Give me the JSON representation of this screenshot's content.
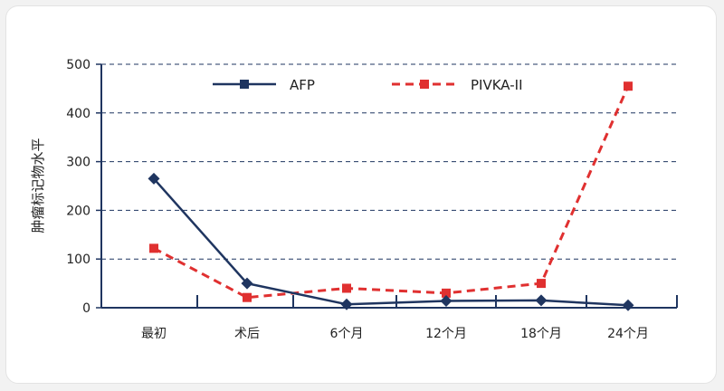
{
  "chart_data": {
    "type": "line",
    "categories": [
      "最初",
      "术后",
      "6个月",
      "12个月",
      "18个月",
      "24个月"
    ],
    "ylabel": "肿瘤标记物水平",
    "xlabel": "",
    "ylim": [
      0,
      500
    ],
    "yticks": [
      0,
      100,
      200,
      300,
      400,
      500
    ],
    "grid": true,
    "legend_position": "top",
    "series": [
      {
        "name": "AFP",
        "values": [
          265,
          50,
          7,
          14,
          15,
          5
        ],
        "color": "#1f3560",
        "line_style": "solid",
        "marker": "diamond"
      },
      {
        "name": "PIVKA-II",
        "values": [
          122,
          21,
          40,
          30,
          50,
          455
        ],
        "color": "#e03030",
        "line_style": "dashed",
        "marker": "square"
      }
    ]
  }
}
